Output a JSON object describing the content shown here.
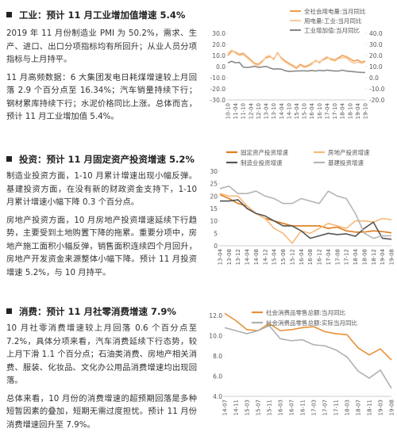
{
  "sections": [
    {
      "title": "工业：预计 11 月工业增加值增速 5.4%",
      "paragraphs": [
        "2019 年 11 月份制造业 PMI 为 50.2%，需求、生产、进口、出口分项指标均有所回升；从业人员分项指标与上月持平。",
        "11 月高频数据：6 大集团发电日耗煤增速较上月回落 2.9 个百分点至 16.34%；汽车销量持续下行；钢材累库持续下行；水泥价格同比上涨。总体而言，预计 11 月工业增加值 5.4%。"
      ],
      "chart": {
        "type": "line",
        "categories": [
          "10-10",
          null,
          "11-04",
          null,
          "11-10",
          null,
          "12-04",
          null,
          "12-10",
          null,
          "13-04",
          null,
          "13-10",
          null,
          "14-04",
          null,
          "14-10",
          null,
          "15-04",
          null,
          "15-10",
          null,
          "16-04",
          null,
          "16-10",
          null,
          "17-04",
          null,
          "17-10",
          null,
          "18-04",
          null,
          "18-10",
          null,
          "19-04",
          null,
          "19-10"
        ],
        "ylim": [
          -30,
          30
        ],
        "yticks": [
          {
            "value": -30,
            "label": "-30.0"
          },
          {
            "value": -20,
            "label": "-20.0"
          },
          {
            "value": -10,
            "label": "-10.0"
          },
          {
            "value": 0,
            "label": "0.0"
          },
          {
            "value": 10,
            "label": "10.0"
          },
          {
            "value": 20,
            "label": "20.0"
          },
          {
            "value": 30,
            "label": "30.0"
          }
        ],
        "y2lim": [
          -20,
          40
        ],
        "y2ticks": [
          {
            "value": -20,
            "label": "-20.0"
          },
          {
            "value": -10,
            "label": "-10.0"
          },
          {
            "value": 0,
            "label": "0.0"
          },
          {
            "value": 10,
            "label": "10.0"
          },
          {
            "value": 20,
            "label": "20.0"
          },
          {
            "value": 30,
            "label": "30.0"
          },
          {
            "value": 40,
            "label": "40.0"
          }
        ],
        "series": [
          {
            "name": "全社会用电量:当月同比",
            "color": "#f0a050",
            "values": [
              10,
              14,
              13,
              11,
              12,
              9,
              6,
              3,
              2,
              5,
              8,
              9,
              7,
              12,
              8,
              5,
              3,
              1,
              -1,
              2,
              0,
              1,
              3,
              5,
              4,
              6,
              8,
              7,
              6,
              8,
              10,
              9,
              7,
              5,
              6,
              4,
              5
            ]
          },
          {
            "name": "用电量:工业:当月同比",
            "color": "#f7cba3",
            "values": [
              12,
              15,
              12,
              10,
              11,
              8,
              5,
              2,
              1,
              4,
              9,
              10,
              6,
              13,
              7,
              4,
              2,
              0,
              -2,
              1,
              -1,
              0,
              2,
              6,
              3,
              7,
              9,
              6,
              5,
              7,
              8,
              8,
              5,
              3,
              4,
              3,
              4
            ]
          },
          {
            "name": "工业增加值:当月同比",
            "color": "#8a8a8a",
            "axis": "y2",
            "values": [
              13.3,
              14.8,
              13.4,
              13.8,
              9.6,
              9.2,
              9.6,
              10.3,
              9.3,
              9.7,
              10.2,
              8.8,
              7.7,
              8.0,
              7.7,
              6.3,
              5.6,
              5.9,
              6.0,
              6.1,
              6.2,
              6.0,
              6.5,
              6.0,
              6.6,
              6.2,
              6.8,
              6.4,
              6.0,
              6.0,
              6.8,
              6.0,
              5.7,
              5.4,
              5.0,
              4.8,
              4.7
            ]
          }
        ]
      }
    },
    {
      "title": "投资：预计 11 月固定资产投资增速 5.2%",
      "paragraphs": [
        "制造业投资方面，1-10 月累计增速出现小幅反弹。基建投资方面，在没有新的财政资金支持下，1-10 月累计增速小幅下降 0.3 个百分点。",
        "房地产投资方面，10 月房地产投资增速延续下行趋势，主要受到土地购置下降的拖累。重要分项中，房地产施工面积小幅反弹，销售面积连续四个月回升，房地产开发资金来源整体小幅下降。预计 11 月投资增速 5.2%，与 10 月持平。"
      ],
      "chart": {
        "type": "line",
        "categories": [
          "13-04",
          "13-08",
          "13-12",
          "14-04",
          "14-08",
          "14-12",
          "15-04",
          "15-08",
          "15-12",
          "16-04",
          "16-08",
          "16-12",
          "17-04",
          "17-08",
          "17-12",
          "18-04",
          "18-08",
          "18-12",
          "19-04",
          "19-08"
        ],
        "ylim": [
          0,
          30
        ],
        "yticks": [
          0,
          5,
          10,
          15,
          20,
          25,
          30
        ],
        "series": [
          {
            "name": "固定资产投资增速",
            "color": "#e07b1a",
            "values": [
              20.6,
              19,
              17,
              16,
              13,
              11,
              10,
              9,
              8,
              8,
              8,
              8,
              7,
              7.5,
              6,
              5.5,
              5.5,
              6,
              5.7,
              5.2
            ]
          },
          {
            "name": "房地产投资增速",
            "color": "#f5b97a",
            "values": [
              21,
              20,
              20,
              16,
              13,
              11,
              7,
              5,
              1,
              6,
              5,
              7,
              9,
              8,
              7,
              10,
              10,
              9.5,
              11,
              10.5
            ]
          },
          {
            "name": "制造业投资增速",
            "color": "#555555",
            "values": [
              18,
              18,
              18.5,
              15,
              13,
              12,
              10,
              8,
              8,
              6,
              3,
              4,
              5,
              4.5,
              4.8,
              3.8,
              7,
              9.5,
              3,
              2.6
            ]
          },
          {
            "name": "基建投资增速",
            "color": "#b5b5b5",
            "values": [
              23,
              24,
              21,
              21,
              22,
              20,
              19,
              17,
              17,
              19,
              18,
              17,
              22,
              20,
              19,
              13,
              5,
              3,
              4,
              4
            ]
          }
        ]
      }
    },
    {
      "title": "消费：预计 11 月社零消费增速 7.9%",
      "paragraphs": [
        "10 月社零消费增速较上月回落 0.6 个百分点至 7.2%，具体分项来看，汽车消费延续下行态势，较上月下滑 1.1 个百分点；石油类消费、房地产相关消费、服装、化妆品、文化办公用品消费增速均出现回落。",
        "总体来看，10 月份的消费增速的超预期回落是多种短暂因素的叠加，短期无需过度担忧。预计 11 月份消费增速回升至 7.9%。"
      ],
      "chart": {
        "type": "line",
        "categories": [
          "14-07",
          "14-11",
          "15-03",
          "15-07",
          "15-11",
          "16-03",
          "16-07",
          "16-11",
          "17-03",
          "17-07",
          "17-11",
          "18-03",
          "18-07",
          "18-11",
          "19-03",
          "19-08"
        ],
        "ylim": [
          4,
          12
        ],
        "yticks": [
          {
            "value": 4,
            "label": "4.0"
          },
          {
            "value": 6,
            "label": "6.0"
          },
          {
            "value": 8,
            "label": "8.0"
          },
          {
            "value": 10,
            "label": "10.0"
          },
          {
            "value": 12,
            "label": "12.0"
          }
        ],
        "series": [
          {
            "name": "社会消费品零售总额:当月同比",
            "color": "#e8913a",
            "values": [
              12.2,
              11.5,
              10.6,
              10.5,
              11.2,
              10.5,
              10.6,
              10.8,
              10.9,
              10.4,
              10.2,
              10.1,
              8.8,
              8.1,
              8.7,
              7.6
            ]
          },
          {
            "name": "社会消费品零售总额:实际当月同比",
            "color": "#b0b0b0",
            "values": [
              10.8,
              10.5,
              10.2,
              10.5,
              11.0,
              9.7,
              9.5,
              9.6,
              9.1,
              9.0,
              8.6,
              7.9,
              6.5,
              5.8,
              6.6,
              4.8
            ]
          }
        ]
      }
    }
  ]
}
